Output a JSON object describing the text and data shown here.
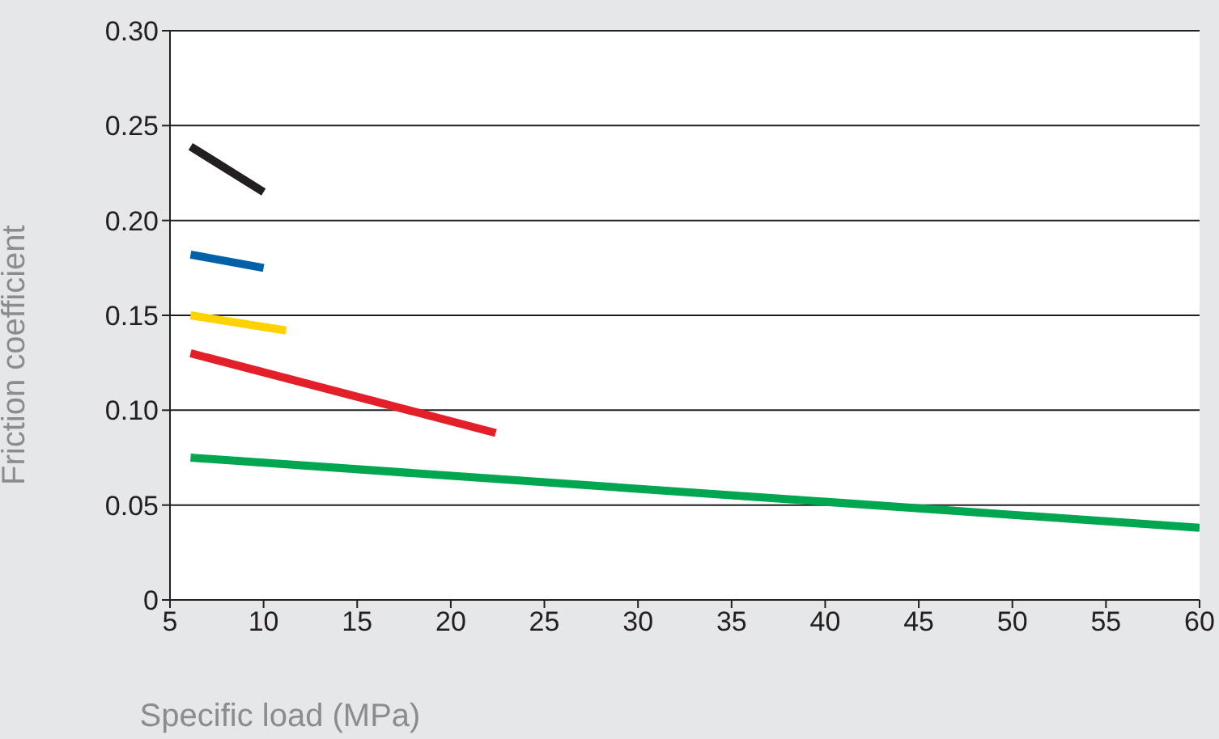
{
  "chart_data": {
    "type": "line",
    "xlabel": "Specific load (MPa)",
    "ylabel": "Friction coefficient",
    "xlim": [
      5,
      60
    ],
    "xticks": [
      5,
      10,
      15,
      20,
      25,
      30,
      35,
      40,
      45,
      50,
      55,
      60
    ],
    "ylim": [
      0,
      0.3
    ],
    "yticks": [
      {
        "value": 0,
        "label": "0"
      },
      {
        "value": 0.05,
        "label": "0.05"
      },
      {
        "value": 0.1,
        "label": "0.10"
      },
      {
        "value": 0.15,
        "label": "0.15"
      },
      {
        "value": 0.2,
        "label": "0.20"
      },
      {
        "value": 0.25,
        "label": "0.25"
      },
      {
        "value": 0.3,
        "label": "0.30"
      }
    ],
    "grid": "y",
    "legend": false,
    "marker": "none",
    "line_style": "solid",
    "series": [
      {
        "color": "#231f20",
        "x": [
          6.1,
          10
        ],
        "values": [
          0.239,
          0.215
        ]
      },
      {
        "color": "#0061a8",
        "x": [
          6.1,
          10
        ],
        "values": [
          0.182,
          0.175
        ]
      },
      {
        "color": "#ffd200",
        "x": [
          6.1,
          11.2
        ],
        "values": [
          0.15,
          0.142
        ]
      },
      {
        "color": "#e3202a",
        "x": [
          6.1,
          22.4
        ],
        "values": [
          0.13,
          0.088
        ]
      },
      {
        "color": "#00a650",
        "x": [
          6.1,
          60
        ],
        "values": [
          0.075,
          0.038
        ]
      }
    ]
  }
}
